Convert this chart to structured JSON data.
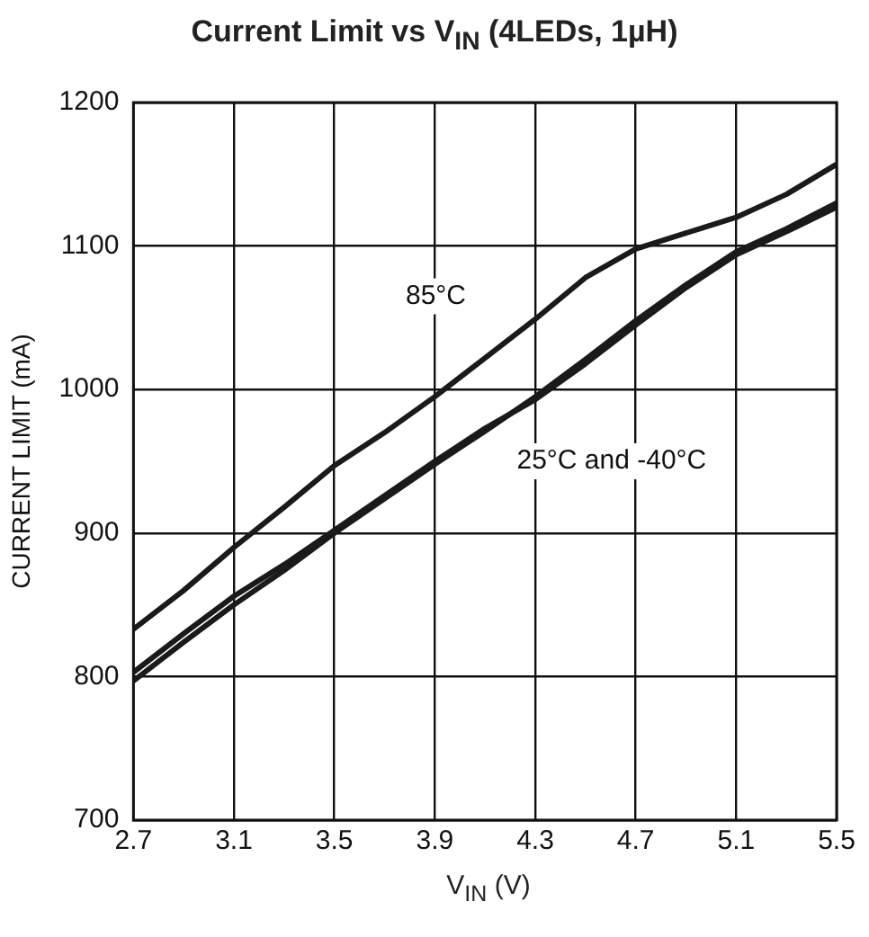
{
  "chart_data": {
    "type": "line",
    "title": "Current Limit vs V$_{IN}$ (4LEDs, 1µH)",
    "xlabel": "V$_{IN}$ (V)",
    "ylabel": "CURRENT LIMIT (mA)",
    "x": [
      2.7,
      2.9,
      3.1,
      3.3,
      3.5,
      3.7,
      3.9,
      4.1,
      4.3,
      4.5,
      4.7,
      4.9,
      5.1,
      5.3,
      5.5
    ],
    "series": [
      {
        "color": "#1a1a1a",
        "values": [
          833,
          860,
          890,
          918,
          947,
          970,
          995,
          1022,
          1049,
          1078,
          1098,
          1109,
          1120,
          1136,
          1157
        ]
      },
      {
        "color": "#1a1a1a",
        "values": [
          803,
          830,
          856,
          878,
          902,
          926,
          950,
          973,
          993,
          1018,
          1045,
          1071,
          1094,
          1110,
          1127
        ]
      },
      {
        "color": "#1a1a1a",
        "values": [
          797,
          824,
          850,
          874,
          900,
          924,
          948,
          971,
          995,
          1021,
          1048,
          1073,
          1096,
          1112,
          1130
        ]
      }
    ],
    "xlim": [
      2.7,
      5.5
    ],
    "xticks": [
      2.7,
      3.1,
      3.5,
      3.9,
      4.3,
      4.7,
      5.1,
      5.5
    ],
    "ylim": [
      700,
      1200
    ],
    "yticks": [
      700,
      800,
      900,
      1000,
      1100,
      1200
    ],
    "grid": true,
    "legend": false,
    "marker": "none",
    "line_style": "solid",
    "annotations": [
      "85°C",
      "25°C and -40°C"
    ]
  }
}
